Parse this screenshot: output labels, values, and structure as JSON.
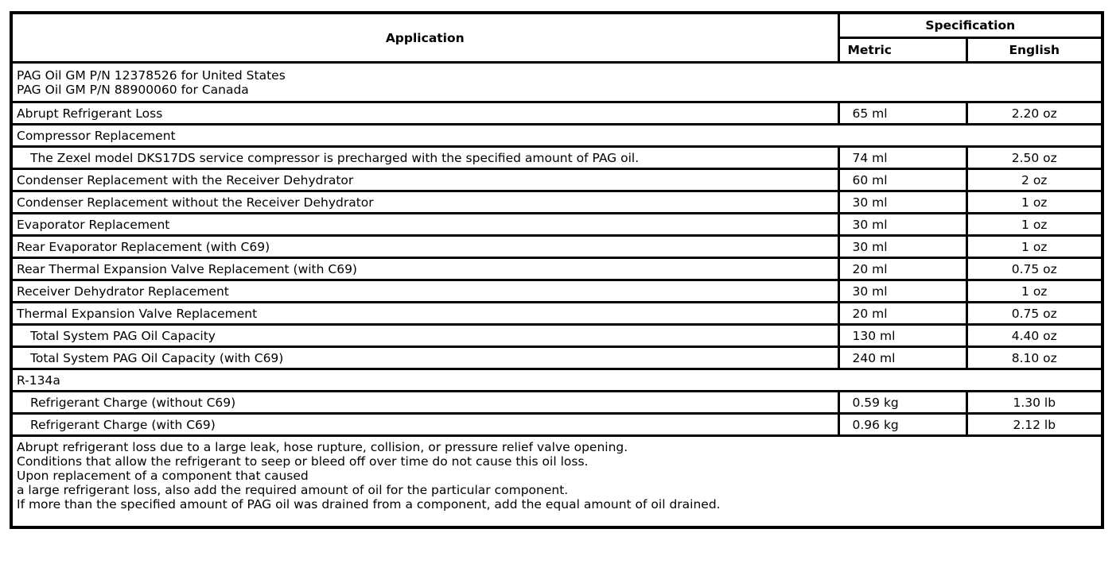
{
  "header": {
    "application": "Application",
    "specification": "Specification",
    "metric": "Metric",
    "english": "English"
  },
  "intro": [
    "PAG Oil GM P/N 12378526 for United States",
    "PAG Oil GM P/N 88900060 for Canada"
  ],
  "rows": [
    {
      "label": "Abrupt Refrigerant Loss",
      "metric": "65 ml",
      "english": "2.20 oz",
      "indent": false
    },
    {
      "label": "Compressor Replacement",
      "section": true
    },
    {
      "label": "The Zexel model DKS17DS service compressor is precharged with the specified amount of PAG oil.",
      "metric": "74 ml",
      "english": "2.50 oz",
      "indent": true
    },
    {
      "label": "Condenser Replacement with the Receiver Dehydrator",
      "metric": "60 ml",
      "english": "2 oz",
      "indent": false
    },
    {
      "label": "Condenser Replacement without the Receiver Dehydrator",
      "metric": "30 ml",
      "english": "1 oz",
      "indent": false
    },
    {
      "label": "Evaporator Replacement",
      "metric": "30 ml",
      "english": "1 oz",
      "indent": false
    },
    {
      "label": "Rear Evaporator Replacement (with C69)",
      "metric": "30 ml",
      "english": "1 oz",
      "indent": false
    },
    {
      "label": "Rear Thermal Expansion Valve Replacement (with C69)",
      "metric": "20 ml",
      "english": "0.75 oz",
      "indent": false
    },
    {
      "label": "Receiver Dehydrator Replacement",
      "metric": "30 ml",
      "english": "1 oz",
      "indent": false
    },
    {
      "label": "Thermal Expansion Valve Replacement",
      "metric": "20 ml",
      "english": "0.75 oz",
      "indent": false
    },
    {
      "label": "Total System PAG Oil Capacity",
      "metric": "130 ml",
      "english": "4.40 oz",
      "indent": true
    },
    {
      "label": "Total System PAG Oil Capacity (with C69)",
      "metric": "240 ml",
      "english": "8.10 oz",
      "indent": true
    },
    {
      "label": "R-134a",
      "section": true
    },
    {
      "label": "Refrigerant Charge (without C69)",
      "metric": "0.59 kg",
      "english": "1.30 lb",
      "indent": true
    },
    {
      "label": "Refrigerant Charge (with C69)",
      "metric": "0.96 kg",
      "english": "2.12 lb",
      "indent": true
    }
  ],
  "notes": [
    "Abrupt refrigerant loss due to a large leak, hose rupture, collision, or pressure relief valve opening.",
    "Conditions that allow the refrigerant to seep or bleed off over time do not cause this oil loss.",
    "Upon replacement of a component that caused",
    "a large refrigerant loss, also add the required amount of oil for the particular component.",
    "If more than the specified amount of PAG oil was drained from a component, add the equal amount of oil drained."
  ]
}
